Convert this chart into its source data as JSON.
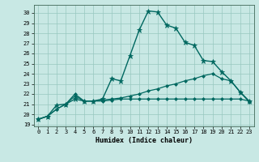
{
  "background_color": "#c8e8e4",
  "line_color": "#006860",
  "xlabel": "Humidex (Indice chaleur)",
  "xlim": [
    -0.5,
    23.5
  ],
  "ylim": [
    18.8,
    30.8
  ],
  "xticks": [
    0,
    1,
    2,
    3,
    4,
    5,
    6,
    7,
    8,
    9,
    10,
    11,
    12,
    13,
    14,
    15,
    16,
    17,
    18,
    19,
    20,
    21,
    22,
    23
  ],
  "yticks": [
    19,
    20,
    21,
    22,
    23,
    24,
    25,
    26,
    27,
    28,
    29,
    30
  ],
  "series": [
    {
      "x": [
        0,
        1,
        2,
        3,
        4,
        5,
        6,
        7,
        8,
        9,
        10,
        11,
        12,
        13,
        14,
        15,
        16,
        17,
        18,
        19,
        20,
        21,
        22,
        23
      ],
      "y": [
        19.5,
        19.8,
        20.9,
        21.0,
        21.5,
        21.3,
        21.3,
        21.5,
        23.5,
        23.3,
        25.8,
        28.3,
        30.2,
        30.1,
        28.8,
        28.5,
        27.1,
        26.8,
        25.3,
        25.2,
        24.2,
        23.3,
        22.2,
        21.3
      ],
      "marker": "*",
      "ms": 4.5,
      "lw": 1.0
    },
    {
      "x": [
        0,
        1,
        2,
        3,
        4,
        5,
        6,
        7,
        8,
        9,
        10,
        11,
        12,
        13,
        14,
        15,
        16,
        17,
        18,
        19,
        20,
        21,
        22,
        23
      ],
      "y": [
        19.5,
        19.8,
        20.5,
        21.0,
        22.0,
        21.3,
        21.3,
        21.4,
        21.5,
        21.6,
        21.8,
        22.0,
        22.3,
        22.5,
        22.8,
        23.0,
        23.3,
        23.5,
        23.8,
        24.0,
        23.5,
        23.3,
        22.2,
        21.2
      ],
      "marker": "D",
      "ms": 2.0,
      "lw": 0.9
    },
    {
      "x": [
        0,
        1,
        2,
        3,
        4,
        5,
        6,
        7,
        8,
        9,
        10,
        11,
        12,
        13,
        14,
        15,
        16,
        17,
        18,
        19,
        20,
        21,
        22,
        23
      ],
      "y": [
        19.5,
        19.8,
        20.5,
        21.0,
        21.8,
        21.3,
        21.3,
        21.3,
        21.4,
        21.5,
        21.5,
        21.5,
        21.5,
        21.5,
        21.5,
        21.5,
        21.5,
        21.5,
        21.5,
        21.5,
        21.5,
        21.5,
        21.5,
        21.3
      ],
      "marker": "D",
      "ms": 2.0,
      "lw": 0.9
    }
  ]
}
